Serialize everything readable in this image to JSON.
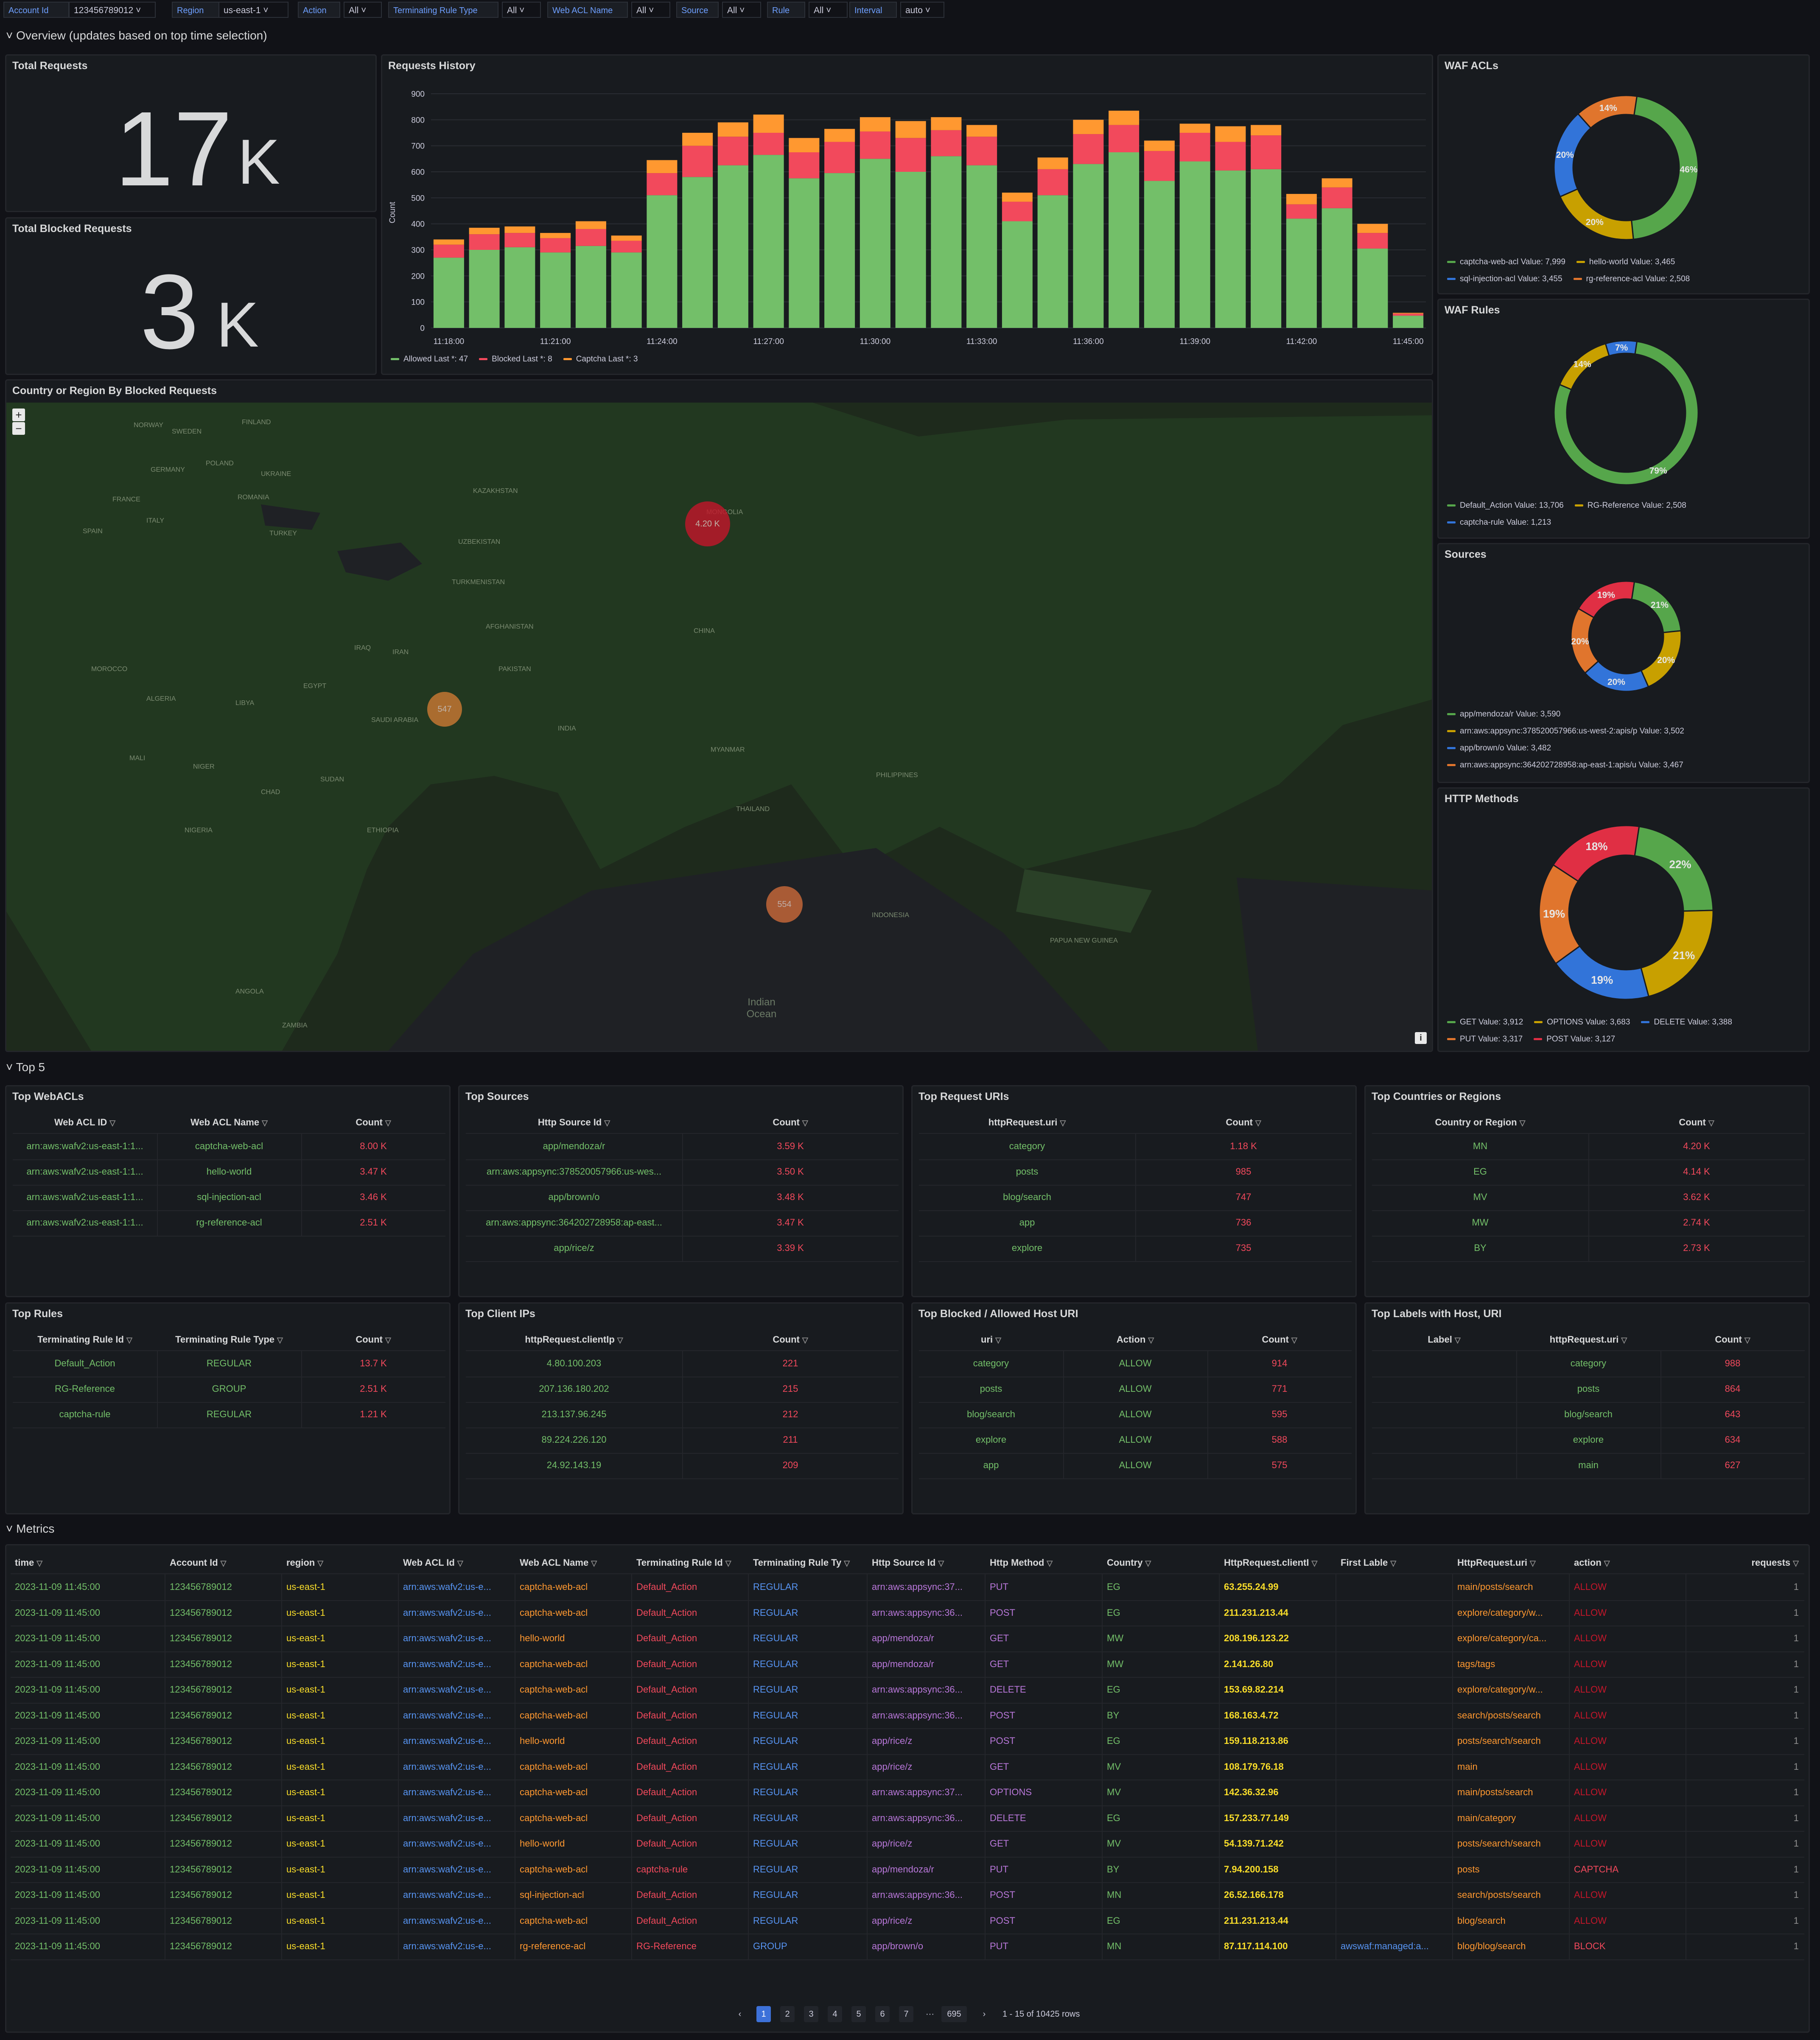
{
  "variables": [
    {
      "label": "Account Id",
      "value": "123456789012 ˅"
    },
    {
      "label": "Region",
      "value": "us-east-1 ˅"
    },
    {
      "label": "Action",
      "value": "All ˅"
    },
    {
      "label": "Terminating Rule Type",
      "value": "All ˅"
    },
    {
      "label": "Web ACL Name",
      "value": "All ˅"
    },
    {
      "label": "Source",
      "value": "All ˅"
    },
    {
      "label": "Rule",
      "value": "All ˅"
    },
    {
      "label": "Interval",
      "value": "auto ˅"
    }
  ],
  "rows": {
    "overview": "Overview (updates based on top time selection)",
    "top5": "Top 5",
    "metrics": "Metrics"
  },
  "total_requests": {
    "title": "Total Requests",
    "value": "17",
    "unit": "K"
  },
  "total_blocked": {
    "title": "Total Blocked Requests",
    "value": "3",
    "unit": "K"
  },
  "history": {
    "title": "Requests History",
    "legend": [
      {
        "label": "Allowed  Last *: 47",
        "color": "#73bf69"
      },
      {
        "label": "Blocked  Last *: 8",
        "color": "#f2495c"
      },
      {
        "label": "Captcha  Last *: 3",
        "color": "#ff9830"
      }
    ]
  },
  "chart_data": {
    "type": "bar",
    "title": "Requests History",
    "ylabel": "Count",
    "ylim": [
      0,
      900
    ],
    "yticks": [
      0,
      100,
      200,
      300,
      400,
      500,
      600,
      700,
      800,
      900
    ],
    "xticks": [
      "11:18:00",
      "11:21:00",
      "11:24:00",
      "11:27:00",
      "11:30:00",
      "11:33:00",
      "11:36:00",
      "11:39:00",
      "11:42:00",
      "11:45:00"
    ],
    "stacked": true,
    "series": [
      {
        "name": "Allowed",
        "color": "#73bf69",
        "values": [
          270,
          300,
          310,
          290,
          315,
          290,
          510,
          580,
          625,
          665,
          575,
          595,
          650,
          600,
          660,
          625,
          410,
          510,
          630,
          675,
          565,
          640,
          605,
          610,
          420,
          460,
          305,
          47
        ]
      },
      {
        "name": "Blocked",
        "color": "#f2495c",
        "values": [
          50,
          60,
          55,
          55,
          65,
          45,
          85,
          120,
          110,
          85,
          100,
          120,
          105,
          130,
          100,
          110,
          75,
          100,
          115,
          105,
          115,
          110,
          110,
          130,
          55,
          80,
          60,
          8
        ]
      },
      {
        "name": "Captcha",
        "color": "#ff9830",
        "values": [
          20,
          25,
          25,
          20,
          30,
          20,
          50,
          50,
          55,
          70,
          55,
          50,
          55,
          65,
          50,
          45,
          35,
          45,
          55,
          55,
          40,
          35,
          60,
          40,
          40,
          35,
          35,
          3
        ]
      }
    ]
  },
  "map": {
    "title": "Country or Region By Blocked Requests",
    "zoom_in": "+",
    "zoom_out": "−",
    "info": "i",
    "labels": [
      {
        "text": "FINLAND",
        "x": 555,
        "y": 38
      },
      {
        "text": "NORWAY",
        "x": 300,
        "y": 45
      },
      {
        "text": "SWEDEN",
        "x": 390,
        "y": 60
      },
      {
        "text": "POLAND",
        "x": 470,
        "y": 135
      },
      {
        "text": "GERMANY",
        "x": 340,
        "y": 150
      },
      {
        "text": "FRANCE",
        "x": 250,
        "y": 220
      },
      {
        "text": "ITALY",
        "x": 330,
        "y": 270
      },
      {
        "text": "SPAIN",
        "x": 180,
        "y": 295
      },
      {
        "text": "UKRAINE",
        "x": 600,
        "y": 160
      },
      {
        "text": "ROMANIA",
        "x": 545,
        "y": 215
      },
      {
        "text": "TURKEY",
        "x": 620,
        "y": 300
      },
      {
        "text": "KAZAKHSTAN",
        "x": 1100,
        "y": 200
      },
      {
        "text": "UZBEKISTAN",
        "x": 1065,
        "y": 320
      },
      {
        "text": "TURKMENISTAN",
        "x": 1050,
        "y": 415
      },
      {
        "text": "MONGOLIA",
        "x": 1650,
        "y": 250
      },
      {
        "text": "CHINA",
        "x": 1620,
        "y": 530
      },
      {
        "text": "IRAN",
        "x": 910,
        "y": 580
      },
      {
        "text": "IRAQ",
        "x": 820,
        "y": 570
      },
      {
        "text": "AFGHANISTAN",
        "x": 1130,
        "y": 520
      },
      {
        "text": "PAKISTAN",
        "x": 1160,
        "y": 620
      },
      {
        "text": "INDIA",
        "x": 1300,
        "y": 760
      },
      {
        "text": "SAUDI ARABIA",
        "x": 860,
        "y": 740
      },
      {
        "text": "EGYPT",
        "x": 700,
        "y": 660
      },
      {
        "text": "LIBYA",
        "x": 540,
        "y": 700
      },
      {
        "text": "ALGERIA",
        "x": 330,
        "y": 690
      },
      {
        "text": "MOROCCO",
        "x": 200,
        "y": 620
      },
      {
        "text": "MALI",
        "x": 290,
        "y": 830
      },
      {
        "text": "NIGER",
        "x": 440,
        "y": 850
      },
      {
        "text": "CHAD",
        "x": 600,
        "y": 910
      },
      {
        "text": "SUDAN",
        "x": 740,
        "y": 880
      },
      {
        "text": "ETHIOPIA",
        "x": 850,
        "y": 1000
      },
      {
        "text": "NIGERIA",
        "x": 420,
        "y": 1000
      },
      {
        "text": "MYANMAR",
        "x": 1660,
        "y": 810
      },
      {
        "text": "THAILAND",
        "x": 1720,
        "y": 950
      },
      {
        "text": "PHILIPPINES",
        "x": 2050,
        "y": 870
      },
      {
        "text": "INDONESIA",
        "x": 2040,
        "y": 1200
      },
      {
        "text": "PAPUA NEW GUINEA",
        "x": 2460,
        "y": 1260
      },
      {
        "text": "ANGOLA",
        "x": 540,
        "y": 1380
      },
      {
        "text": "ZAMBIA",
        "x": 650,
        "y": 1460
      }
    ],
    "ocean": "Indian Ocean",
    "markers": [
      {
        "label": "4.20 K",
        "x": 1650,
        "y": 283,
        "r": 50,
        "color": "#c4162a"
      },
      {
        "label": "547",
        "x": 1030,
        "y": 720,
        "r": 38,
        "color": "#cc7a33"
      },
      {
        "label": "554",
        "x": 1831,
        "y": 1180,
        "r": 40,
        "color": "#cc6a3a"
      }
    ]
  },
  "donuts": [
    {
      "title": "WAF ACLs",
      "slices": [
        {
          "label": "captcha-web-acl",
          "value": "7,999",
          "pct": 46,
          "color": "#56a64b"
        },
        {
          "label": "hello-world",
          "value": "3,465",
          "pct": 20,
          "color": "#c8a000"
        },
        {
          "label": "sql-injection-acl",
          "value": "3,455",
          "pct": 20,
          "color": "#3274d9"
        },
        {
          "label": "rg-reference-acl",
          "value": "2,508",
          "pct": 14,
          "color": "#e0752d"
        }
      ]
    },
    {
      "title": "WAF Rules",
      "slices": [
        {
          "label": "Default_Action",
          "value": "13,706",
          "pct": 79,
          "color": "#56a64b"
        },
        {
          "label": "RG-Reference",
          "value": "2,508",
          "pct": 14,
          "color": "#c8a000"
        },
        {
          "label": "captcha-rule",
          "value": "1,213",
          "pct": 7,
          "color": "#3274d9"
        }
      ]
    },
    {
      "title": "Sources",
      "slices": [
        {
          "label": "app/mendoza/r",
          "value": "3,590",
          "pct": 21,
          "color": "#56a64b"
        },
        {
          "label": "arn:aws:appsync:378520057966:us-west-2:apis/p",
          "value": "3,502",
          "pct": 20,
          "color": "#c8a000"
        },
        {
          "label": "app/brown/o",
          "value": "3,482",
          "pct": 20,
          "color": "#3274d9"
        },
        {
          "label": "arn:aws:appsync:364202728958:ap-east-1:apis/u",
          "value": "3,467",
          "pct": 20,
          "color": "#e0752d"
        },
        {
          "label": "",
          "value": "",
          "pct": 19,
          "color": "#e02f44"
        }
      ]
    },
    {
      "title": "HTTP Methods",
      "slices": [
        {
          "label": "GET",
          "value": "3,912",
          "pct": 22,
          "color": "#56a64b"
        },
        {
          "label": "OPTIONS",
          "value": "3,683",
          "pct": 21,
          "color": "#c8a000"
        },
        {
          "label": "DELETE",
          "value": "3,388",
          "pct": 19,
          "color": "#3274d9"
        },
        {
          "label": "PUT",
          "value": "3,317",
          "pct": 19,
          "color": "#e0752d"
        },
        {
          "label": "POST",
          "value": "3,127",
          "pct": 18,
          "color": "#e02f44"
        }
      ]
    }
  ],
  "top_tables": [
    {
      "title": "Top WebACLs",
      "cols": [
        "Web ACL ID",
        "Web ACL Name",
        "Count"
      ],
      "rows": [
        [
          "arn:aws:wafv2:us-east-1:1...",
          "captcha-web-acl",
          "8.00 K"
        ],
        [
          "arn:aws:wafv2:us-east-1:1...",
          "hello-world",
          "3.47 K"
        ],
        [
          "arn:aws:wafv2:us-east-1:1...",
          "sql-injection-acl",
          "3.46 K"
        ],
        [
          "arn:aws:wafv2:us-east-1:1...",
          "rg-reference-acl",
          "2.51 K"
        ]
      ]
    },
    {
      "title": "Top Sources",
      "cols": [
        "Http Source Id",
        "Count"
      ],
      "rows": [
        [
          "app/mendoza/r",
          "3.59 K"
        ],
        [
          "arn:aws:appsync:378520057966:us-wes...",
          "3.50 K"
        ],
        [
          "app/brown/o",
          "3.48 K"
        ],
        [
          "arn:aws:appsync:364202728958:ap-east...",
          "3.47 K"
        ],
        [
          "app/rice/z",
          "3.39 K"
        ]
      ]
    },
    {
      "title": "Top Request URIs",
      "cols": [
        "httpRequest.uri",
        "Count"
      ],
      "rows": [
        [
          "category",
          "1.18 K"
        ],
        [
          "posts",
          "985"
        ],
        [
          "blog/search",
          "747"
        ],
        [
          "app",
          "736"
        ],
        [
          "explore",
          "735"
        ]
      ]
    },
    {
      "title": "Top Countries or Regions",
      "cols": [
        "Country or Region",
        "Count"
      ],
      "rows": [
        [
          "MN",
          "4.20 K"
        ],
        [
          "EG",
          "4.14 K"
        ],
        [
          "MV",
          "3.62 K"
        ],
        [
          "MW",
          "2.74 K"
        ],
        [
          "BY",
          "2.73 K"
        ]
      ]
    },
    {
      "title": "Top Rules",
      "cols": [
        "Terminating Rule Id",
        "Terminating Rule Type",
        "Count"
      ],
      "rows": [
        [
          "Default_Action",
          "REGULAR",
          "13.7 K"
        ],
        [
          "RG-Reference",
          "GROUP",
          "2.51 K"
        ],
        [
          "captcha-rule",
          "REGULAR",
          "1.21 K"
        ]
      ]
    },
    {
      "title": "Top Client IPs",
      "cols": [
        "httpRequest.clientIp",
        "Count"
      ],
      "rows": [
        [
          "4.80.100.203",
          "221"
        ],
        [
          "207.136.180.202",
          "215"
        ],
        [
          "213.137.96.245",
          "212"
        ],
        [
          "89.224.226.120",
          "211"
        ],
        [
          "24.92.143.19",
          "209"
        ]
      ]
    },
    {
      "title": "Top Blocked / Allowed Host URI",
      "cols": [
        "uri",
        "Action",
        "Count"
      ],
      "rows": [
        [
          "category",
          "ALLOW",
          "914"
        ],
        [
          "posts",
          "ALLOW",
          "771"
        ],
        [
          "blog/search",
          "ALLOW",
          "595"
        ],
        [
          "explore",
          "ALLOW",
          "588"
        ],
        [
          "app",
          "ALLOW",
          "575"
        ]
      ]
    },
    {
      "title": "Top Labels with Host, URI",
      "cols": [
        "Label",
        "httpRequest.uri",
        "Count"
      ],
      "rows": [
        [
          "",
          "category",
          "988"
        ],
        [
          "",
          "posts",
          "864"
        ],
        [
          "",
          "blog/search",
          "643"
        ],
        [
          "",
          "explore",
          "634"
        ],
        [
          "",
          "main",
          "627"
        ]
      ]
    }
  ],
  "metrics": {
    "cols": [
      "time",
      "Account Id",
      "region",
      "Web ACL Id",
      "Web ACL Name",
      "Terminating Rule Id",
      "Terminating Rule Ty",
      "Http Source Id",
      "Http Method",
      "Country",
      "HttpRequest.clientI",
      "First Lable",
      "HttpRequest.uri",
      "action",
      "requests"
    ],
    "rows": [
      [
        "2023-11-09 11:45:00",
        "123456789012",
        "us-east-1",
        "arn:aws:wafv2:us-e...",
        "captcha-web-acl",
        "Default_Action",
        "REGULAR",
        "arn:aws:appsync:37...",
        "PUT",
        "EG",
        "63.255.24.99",
        "",
        "main/posts/search",
        "ALLOW",
        "1"
      ],
      [
        "2023-11-09 11:45:00",
        "123456789012",
        "us-east-1",
        "arn:aws:wafv2:us-e...",
        "captcha-web-acl",
        "Default_Action",
        "REGULAR",
        "arn:aws:appsync:36...",
        "POST",
        "EG",
        "211.231.213.44",
        "",
        "explore/category/w...",
        "ALLOW",
        "1"
      ],
      [
        "2023-11-09 11:45:00",
        "123456789012",
        "us-east-1",
        "arn:aws:wafv2:us-e...",
        "hello-world",
        "Default_Action",
        "REGULAR",
        "app/mendoza/r",
        "GET",
        "MW",
        "208.196.123.22",
        "",
        "explore/category/ca...",
        "ALLOW",
        "1"
      ],
      [
        "2023-11-09 11:45:00",
        "123456789012",
        "us-east-1",
        "arn:aws:wafv2:us-e...",
        "captcha-web-acl",
        "Default_Action",
        "REGULAR",
        "app/mendoza/r",
        "GET",
        "MW",
        "2.141.26.80",
        "",
        "tags/tags",
        "ALLOW",
        "1"
      ],
      [
        "2023-11-09 11:45:00",
        "123456789012",
        "us-east-1",
        "arn:aws:wafv2:us-e...",
        "captcha-web-acl",
        "Default_Action",
        "REGULAR",
        "arn:aws:appsync:36...",
        "DELETE",
        "EG",
        "153.69.82.214",
        "",
        "explore/category/w...",
        "ALLOW",
        "1"
      ],
      [
        "2023-11-09 11:45:00",
        "123456789012",
        "us-east-1",
        "arn:aws:wafv2:us-e...",
        "captcha-web-acl",
        "Default_Action",
        "REGULAR",
        "arn:aws:appsync:36...",
        "POST",
        "BY",
        "168.163.4.72",
        "",
        "search/posts/search",
        "ALLOW",
        "1"
      ],
      [
        "2023-11-09 11:45:00",
        "123456789012",
        "us-east-1",
        "arn:aws:wafv2:us-e...",
        "hello-world",
        "Default_Action",
        "REGULAR",
        "app/rice/z",
        "POST",
        "EG",
        "159.118.213.86",
        "",
        "posts/search/search",
        "ALLOW",
        "1"
      ],
      [
        "2023-11-09 11:45:00",
        "123456789012",
        "us-east-1",
        "arn:aws:wafv2:us-e...",
        "captcha-web-acl",
        "Default_Action",
        "REGULAR",
        "app/rice/z",
        "GET",
        "MV",
        "108.179.76.18",
        "",
        "main",
        "ALLOW",
        "1"
      ],
      [
        "2023-11-09 11:45:00",
        "123456789012",
        "us-east-1",
        "arn:aws:wafv2:us-e...",
        "captcha-web-acl",
        "Default_Action",
        "REGULAR",
        "arn:aws:appsync:37...",
        "OPTIONS",
        "MV",
        "142.36.32.96",
        "",
        "main/posts/search",
        "ALLOW",
        "1"
      ],
      [
        "2023-11-09 11:45:00",
        "123456789012",
        "us-east-1",
        "arn:aws:wafv2:us-e...",
        "captcha-web-acl",
        "Default_Action",
        "REGULAR",
        "arn:aws:appsync:36...",
        "DELETE",
        "EG",
        "157.233.77.149",
        "",
        "main/category",
        "ALLOW",
        "1"
      ],
      [
        "2023-11-09 11:45:00",
        "123456789012",
        "us-east-1",
        "arn:aws:wafv2:us-e...",
        "hello-world",
        "Default_Action",
        "REGULAR",
        "app/rice/z",
        "GET",
        "MV",
        "54.139.71.242",
        "",
        "posts/search/search",
        "ALLOW",
        "1"
      ],
      [
        "2023-11-09 11:45:00",
        "123456789012",
        "us-east-1",
        "arn:aws:wafv2:us-e...",
        "captcha-web-acl",
        "captcha-rule",
        "REGULAR",
        "app/mendoza/r",
        "PUT",
        "BY",
        "7.94.200.158",
        "",
        "posts",
        "CAPTCHA",
        "1"
      ],
      [
        "2023-11-09 11:45:00",
        "123456789012",
        "us-east-1",
        "arn:aws:wafv2:us-e...",
        "sql-injection-acl",
        "Default_Action",
        "REGULAR",
        "arn:aws:appsync:36...",
        "POST",
        "MN",
        "26.52.166.178",
        "",
        "search/posts/search",
        "ALLOW",
        "1"
      ],
      [
        "2023-11-09 11:45:00",
        "123456789012",
        "us-east-1",
        "arn:aws:wafv2:us-e...",
        "captcha-web-acl",
        "Default_Action",
        "REGULAR",
        "app/rice/z",
        "POST",
        "EG",
        "211.231.213.44",
        "",
        "blog/search",
        "ALLOW",
        "1"
      ],
      [
        "2023-11-09 11:45:00",
        "123456789012",
        "us-east-1",
        "arn:aws:wafv2:us-e...",
        "rg-reference-acl",
        "RG-Reference",
        "GROUP",
        "app/brown/o",
        "PUT",
        "MN",
        "87.117.114.100",
        "awswaf:managed:a...",
        "blog/blog/search",
        "BLOCK",
        "1"
      ]
    ],
    "pagination": {
      "prev": "‹",
      "pages": [
        "1",
        "2",
        "3",
        "4",
        "5",
        "6",
        "7"
      ],
      "ellipsis": "···",
      "last": "695",
      "next": "›",
      "summary": "1 - 15 of 10425 rows"
    }
  },
  "colors": {
    "green": "#73bf69",
    "red": "#f2495c",
    "orange": "#ff9830",
    "yellow": "#fade2a",
    "blue": "#5794f2",
    "purple": "#b877d9",
    "panel": "#181b1f",
    "bg": "#111217"
  }
}
